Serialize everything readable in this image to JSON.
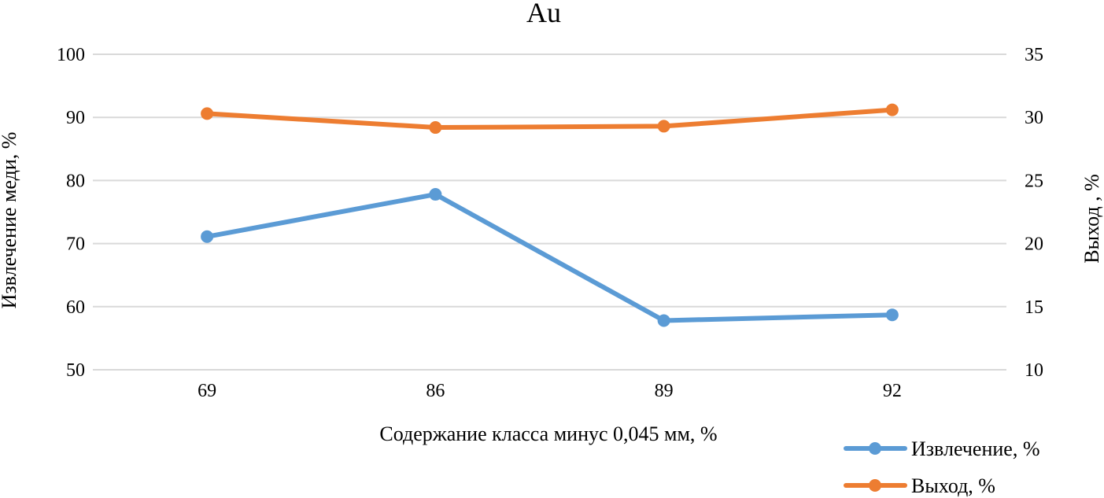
{
  "chart_data": {
    "type": "line",
    "title": "Au",
    "xlabel": "Содержание класса минус 0,045 мм, %",
    "ylabel": "Извлечение меди, %",
    "y2label": "Выход , %",
    "categories": [
      "69",
      "86",
      "89",
      "92"
    ],
    "ylim": [
      50,
      100
    ],
    "yticks": [
      "50",
      "60",
      "70",
      "80",
      "90",
      "100"
    ],
    "y2lim": [
      10,
      35
    ],
    "y2ticks": [
      "10",
      "15",
      "20",
      "25",
      "30",
      "35"
    ],
    "grid": true,
    "legend_position": "bottom-right",
    "series": [
      {
        "name": "Извлечение, %",
        "axis": "left",
        "color": "#5b9bd5",
        "values": [
          71.1,
          77.8,
          57.8,
          58.7
        ]
      },
      {
        "name": "Выход, %",
        "axis": "right",
        "color": "#ed7d31",
        "values": [
          30.3,
          29.2,
          29.3,
          30.6
        ]
      }
    ]
  }
}
